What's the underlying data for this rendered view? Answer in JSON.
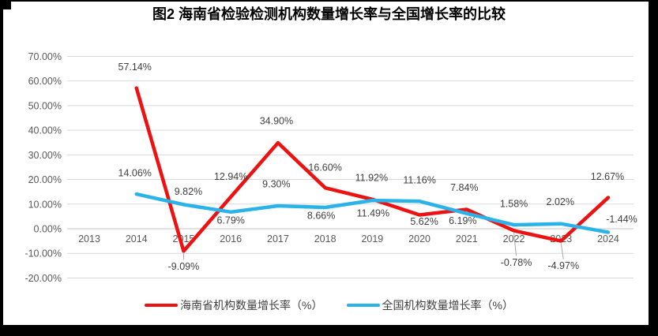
{
  "frame": {
    "color": "#000000"
  },
  "chart_data": {
    "type": "line",
    "title": "图2 海南省检验检测机构数量增长率与全国增长率的比较",
    "categories": [
      "2013",
      "2014",
      "2015",
      "2016",
      "2017",
      "2018",
      "2019",
      "2020",
      "2021",
      "2022",
      "2023",
      "2024"
    ],
    "y_axis": {
      "min": -20,
      "max": 70,
      "step": 10,
      "unit": "%",
      "tick_labels": [
        "70.00%",
        "60.00%",
        "50.00%",
        "40.00%",
        "30.00%",
        "20.00%",
        "10.00%",
        "0.00%",
        "-10.00%",
        "-20.00%"
      ]
    },
    "grid": true,
    "legend_position": "bottom",
    "series": [
      {
        "name": "海南省机构数量增长率（%）",
        "color": "#ee1111",
        "values": [
          null,
          57.14,
          -9.09,
          12.94,
          34.9,
          16.6,
          11.92,
          5.62,
          7.84,
          -0.78,
          -4.97,
          12.67
        ],
        "data_labels": [
          "",
          "57.14%",
          "-9.09%",
          "12.94%",
          "34.90%",
          "16.60%",
          "11.92%",
          "5.62%",
          "7.84%",
          "-0.78%",
          "-4.97%",
          "12.67%"
        ]
      },
      {
        "name": "全国机构数量增长率（%）",
        "color": "#2ab3e8",
        "values": [
          null,
          14.06,
          9.82,
          6.79,
          9.3,
          8.66,
          11.49,
          11.16,
          6.19,
          1.58,
          2.02,
          -1.44
        ],
        "data_labels": [
          "",
          "14.06%",
          "9.82%",
          "6.79%",
          "9.30%",
          "8.66%",
          "11.49%",
          "11.16%",
          "6.19%",
          "1.58%",
          "2.02%",
          "-1.44%"
        ]
      }
    ],
    "label_offsets": {
      "series0": [
        null,
        [
          -2,
          -27
        ],
        [
          0,
          19,
          true
        ],
        [
          0,
          -26
        ],
        [
          -2,
          -28
        ],
        [
          0,
          -26
        ],
        [
          -1,
          -28
        ],
        [
          6,
          8
        ],
        [
          -3,
          -28
        ],
        [
          3,
          40,
          true
        ],
        [
          3,
          31,
          true
        ],
        [
          -1,
          -27
        ]
      ],
      "series1": [
        null,
        [
          -2,
          -27
        ],
        [
          6,
          -17
        ],
        [
          0,
          10
        ],
        [
          -2,
          -28
        ],
        [
          -5,
          10
        ],
        [
          1,
          16
        ],
        [
          0,
          -27
        ],
        [
          -5,
          9
        ],
        [
          0,
          -27
        ],
        [
          -1,
          -28
        ],
        [
          17,
          -17
        ]
      ]
    },
    "text_colors": {
      "title": "#000000",
      "axis": "#595959",
      "data_label": "#404040",
      "legend": "#404040",
      "grid": "#d9d9d9",
      "axis_line": "#c6c6c6",
      "leader": "#a6a6a6"
    }
  }
}
